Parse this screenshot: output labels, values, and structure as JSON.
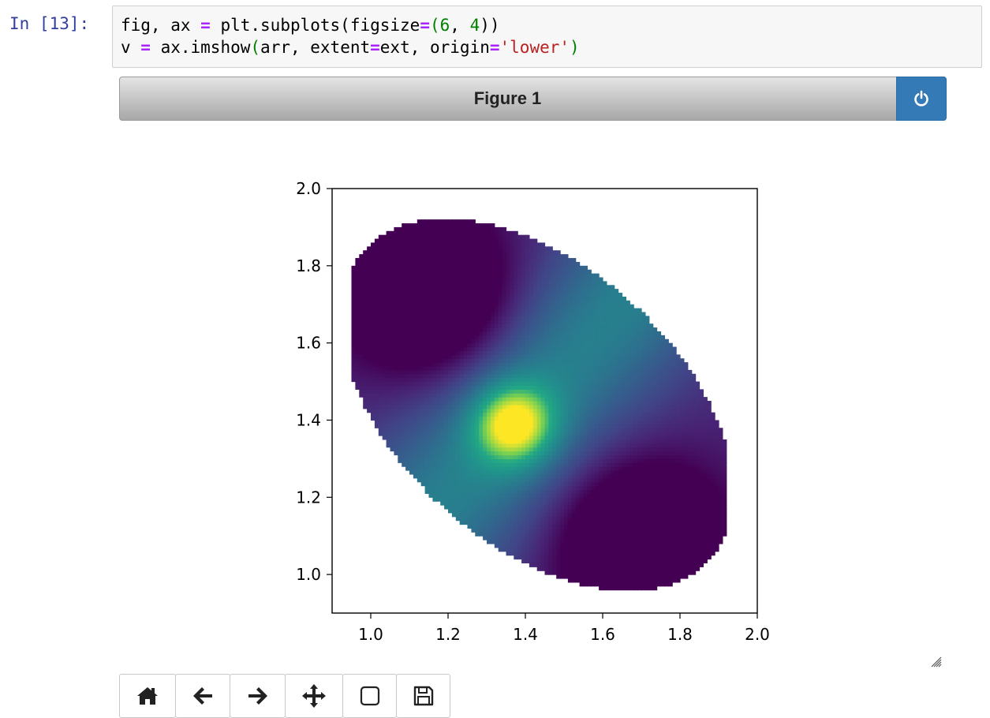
{
  "cell": {
    "prompt": "In [13]:",
    "code_lines": [
      [
        [
          "fig, ax ",
          "n"
        ],
        [
          "=",
          "op"
        ],
        [
          " plt.subplots(figsize",
          "n"
        ],
        [
          "=",
          "op"
        ],
        [
          "(",
          "par"
        ],
        [
          "6",
          "num"
        ],
        [
          ", ",
          "n"
        ],
        [
          "4",
          "num"
        ],
        [
          "))",
          "n"
        ]
      ],
      [
        [
          "v ",
          "n"
        ],
        [
          "=",
          "op"
        ],
        [
          " ax.imshow",
          "n"
        ],
        [
          "(",
          "par"
        ],
        [
          "arr, extent",
          "n"
        ],
        [
          "=",
          "op"
        ],
        [
          "ext, origin",
          "n"
        ],
        [
          "=",
          "op"
        ],
        [
          "'lower'",
          "str"
        ],
        [
          ")",
          "par"
        ]
      ]
    ]
  },
  "figure": {
    "title": "Figure 1",
    "power_icon": "power-icon"
  },
  "toolbar": {
    "buttons": [
      {
        "icon": "home-icon"
      },
      {
        "icon": "back-arrow-icon"
      },
      {
        "icon": "forward-arrow-icon"
      },
      {
        "icon": "pan-move-icon"
      },
      {
        "icon": "zoom-rectangle-icon"
      },
      {
        "icon": "save-floppy-icon"
      }
    ]
  },
  "chart_data": {
    "type": "heatmap",
    "title": "",
    "xlabel": "",
    "ylabel": "",
    "xlim": [
      0.9,
      2.0
    ],
    "ylim": [
      0.9,
      2.0
    ],
    "xticks": [
      "1.0",
      "1.2",
      "1.4",
      "1.6",
      "1.8",
      "2.0"
    ],
    "yticks": [
      "1.0",
      "1.2",
      "1.4",
      "1.6",
      "1.8",
      "2.0"
    ],
    "colormap": "viridis",
    "mask": {
      "shape": "ellipse",
      "center": [
        1.43,
        1.44
      ],
      "angle_deg": -42,
      "semi_major": 0.6,
      "semi_minor": 0.36
    },
    "peak": {
      "x": 1.37,
      "y": 1.39
    },
    "low_lobes": [
      [
        1.15,
        1.73
      ],
      [
        1.7,
        1.08
      ]
    ]
  }
}
